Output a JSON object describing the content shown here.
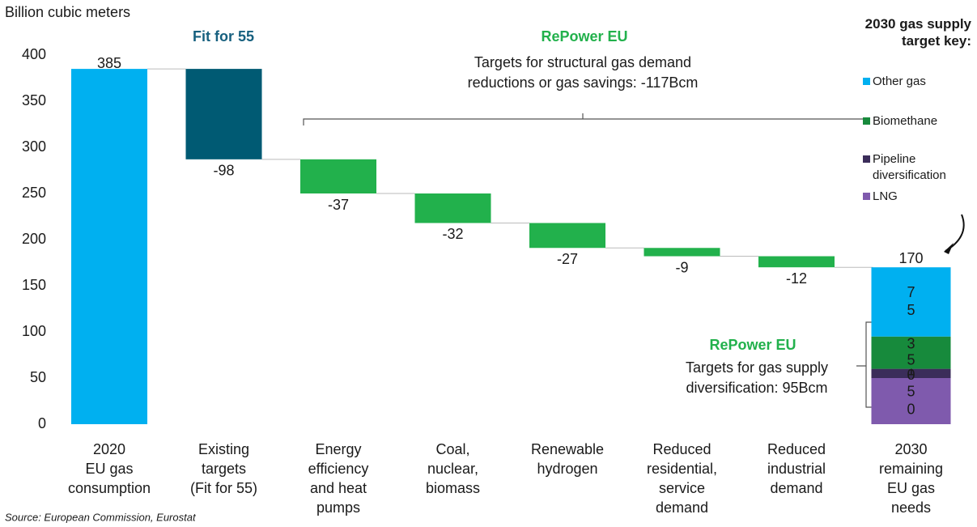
{
  "chart_data": {
    "type": "waterfall",
    "y_label": "Billion cubic meters",
    "categories": [
      [
        "2020",
        "EU gas",
        "consumption"
      ],
      [
        "Existing",
        "targets",
        "(Fit for 55)"
      ],
      [
        "Energy",
        "efficiency",
        "and heat",
        "pumps"
      ],
      [
        "Coal,",
        "nuclear,",
        "biomass"
      ],
      [
        "Renewable",
        "hydrogen"
      ],
      [
        "Reduced",
        "residential,",
        "service",
        "demand"
      ],
      [
        "Reduced",
        "industrial",
        "demand"
      ],
      [
        "2030",
        "remaining",
        "EU gas",
        "needs"
      ]
    ],
    "values": [
      385,
      -98,
      -37,
      -32,
      -27,
      -9,
      -12,
      170
    ],
    "colors": [
      "#00b0f0",
      "#005a73",
      "#22b14c",
      "#22b14c",
      "#22b14c",
      "#22b14c",
      "#22b14c",
      null
    ],
    "stack_series": [
      {
        "name": "Other gas",
        "color": "#00b0f0",
        "label_color": "#1a1a1a",
        "value": 75
      },
      {
        "name": "Biomethane",
        "color": "#178a3c",
        "label_color": "#ffffff",
        "value": 35
      },
      {
        "name": "Pipeline diversification",
        "color": "#3b2d5a",
        "label_color": "#ffffff",
        "value": 10
      },
      {
        "name": "LNG",
        "color": "#7f5aad",
        "label_color": "#ffffff",
        "value": 50
      }
    ],
    "legend_title": [
      "2030 gas supply",
      "target key:"
    ],
    "ylim": [
      0,
      400
    ],
    "yticks": [
      0,
      50,
      100,
      150,
      200,
      250,
      300,
      350,
      400
    ],
    "grid": false,
    "annotations": [
      {
        "text": [
          "Fit for 55"
        ],
        "color": "#17607f",
        "bold": true
      },
      {
        "text": [
          "RePower EU"
        ],
        "color": "#22b14c",
        "bold": true
      },
      {
        "text": [
          "Targets for structural gas demand",
          "reductions or gas savings: -117Bcm"
        ],
        "color": "#1a1a1a",
        "bold": false
      },
      {
        "text": [
          "RePower EU"
        ],
        "color": "#22b14c",
        "bold": true
      },
      {
        "text": [
          "Targets for gas supply",
          "diversification: 95Bcm"
        ],
        "color": "#1a1a1a",
        "bold": false
      }
    ],
    "source": "Source: European Commission, Eurostat"
  }
}
